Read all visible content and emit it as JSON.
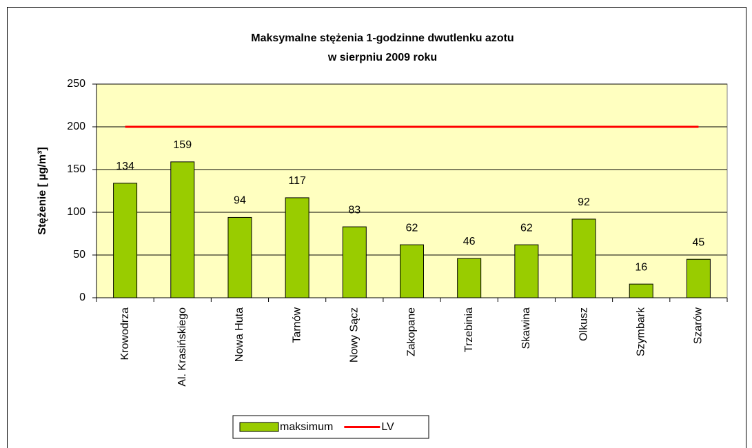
{
  "chart_data": {
    "type": "bar",
    "title": "Maksymalne stężenia 1-godzinne dwutlenku azotu",
    "subtitle": "w sierpniu 2009 roku",
    "y_label": "Stężenie [ µg/m³]",
    "categories": [
      "Krowodrza",
      "Al. Krasińskiego",
      "Nowa Huta",
      "Tarnów",
      "Nowy Sącz",
      "Zakopane",
      "Trzebinia",
      "Skawina",
      "Olkusz",
      "Szymbark",
      "Szarów"
    ],
    "series": [
      {
        "name": "maksimum",
        "type": "bar",
        "color": "#99cc00",
        "values": [
          134,
          159,
          94,
          117,
          83,
          62,
          46,
          62,
          92,
          16,
          45
        ]
      },
      {
        "name": "LV",
        "type": "line",
        "color": "#ff0000",
        "values": [
          200,
          200,
          200,
          200,
          200,
          200,
          200,
          200,
          200,
          200,
          200
        ]
      }
    ],
    "ylim": [
      0,
      250
    ],
    "yticks": [
      0,
      50,
      100,
      150,
      200,
      250
    ],
    "grid": true,
    "legend": "bottom",
    "plot_background": "#ffffc0"
  }
}
